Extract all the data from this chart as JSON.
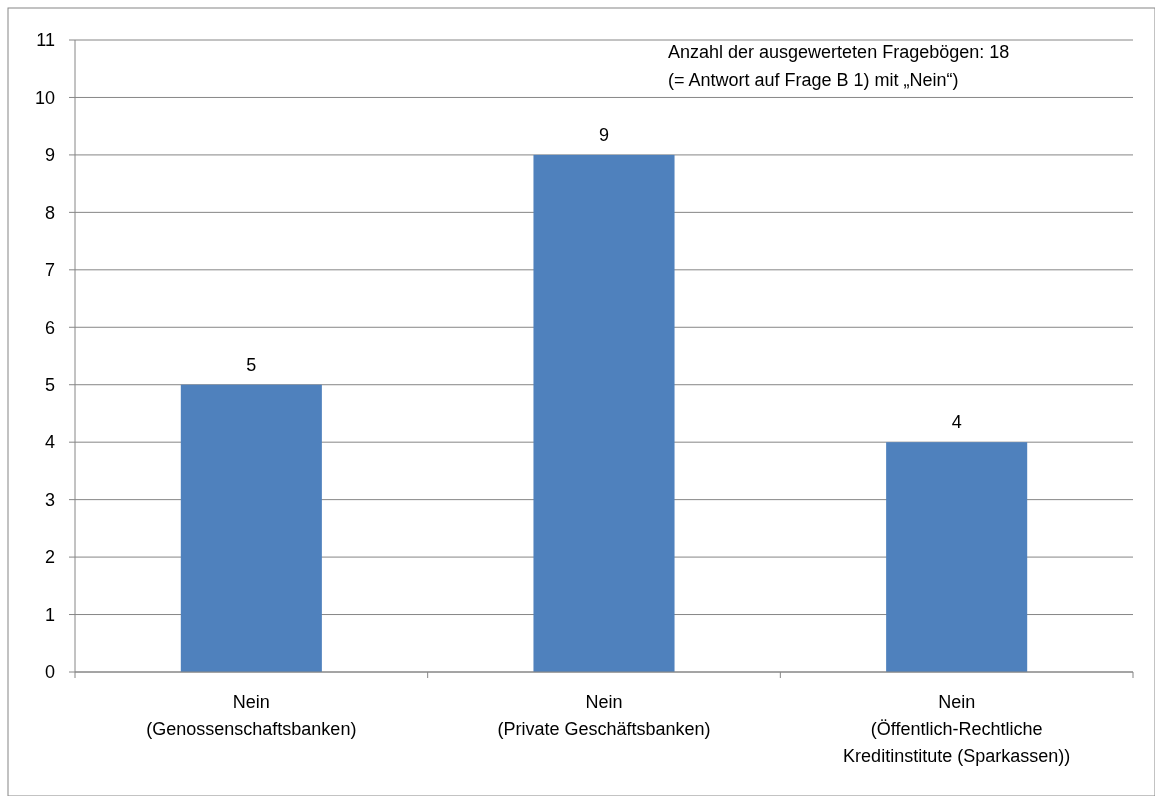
{
  "chart_data": {
    "type": "bar",
    "categories": [
      "Nein\n(Genossenschaftsbanken)",
      "Nein\n(Private Geschäftsbanken)",
      "Nein\n(Öffentlich-Rechtliche\nKreditinstitute (Sparkassen))"
    ],
    "values": [
      5,
      9,
      4
    ],
    "color": "#4f81bd",
    "ylim": [
      0,
      11
    ],
    "yticks": [
      0,
      1,
      2,
      3,
      4,
      5,
      6,
      7,
      8,
      9,
      10,
      11
    ],
    "grid": "y",
    "data_labels": true,
    "annotations": [
      "Anzahl der ausgewerteten Fragebögen: 18",
      "(= Antwort auf Frage B 1) mit „Nein“)"
    ]
  }
}
